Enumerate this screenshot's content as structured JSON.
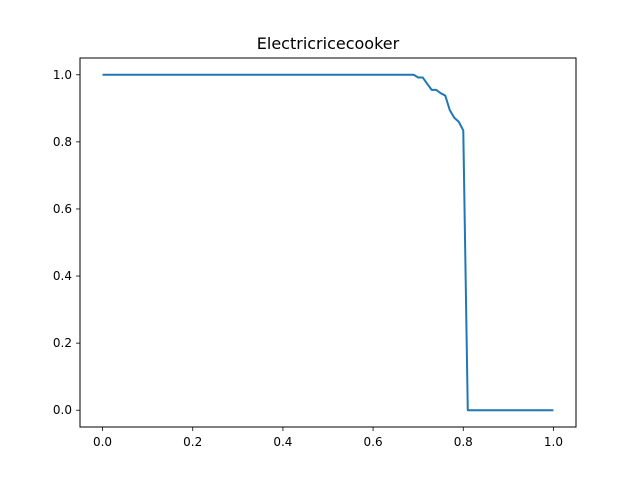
{
  "chart_data": {
    "type": "line",
    "title": "Electricricecooker",
    "xlabel": "",
    "ylabel": "",
    "xlim": [
      -0.05,
      1.05
    ],
    "ylim": [
      -0.05,
      1.05
    ],
    "x_ticks": [
      "0.0",
      "0.2",
      "0.4",
      "0.6",
      "0.8",
      "1.0"
    ],
    "y_ticks": [
      "0.0",
      "0.2",
      "0.4",
      "0.6",
      "0.8",
      "1.0"
    ],
    "grid": false,
    "legend": "none",
    "series": [
      {
        "color": "#1f77b4",
        "points": [
          [
            0.0,
            1.0
          ],
          [
            0.1,
            1.0
          ],
          [
            0.2,
            1.0
          ],
          [
            0.3,
            1.0
          ],
          [
            0.4,
            1.0
          ],
          [
            0.5,
            1.0
          ],
          [
            0.6,
            1.0
          ],
          [
            0.69,
            1.0
          ],
          [
            0.7,
            0.992
          ],
          [
            0.71,
            0.992
          ],
          [
            0.72,
            0.973
          ],
          [
            0.73,
            0.955
          ],
          [
            0.74,
            0.955
          ],
          [
            0.75,
            0.945
          ],
          [
            0.76,
            0.938
          ],
          [
            0.77,
            0.895
          ],
          [
            0.78,
            0.872
          ],
          [
            0.79,
            0.86
          ],
          [
            0.8,
            0.834
          ],
          [
            0.81,
            0.0
          ],
          [
            0.9,
            0.0
          ],
          [
            1.0,
            0.0
          ]
        ]
      }
    ]
  }
}
